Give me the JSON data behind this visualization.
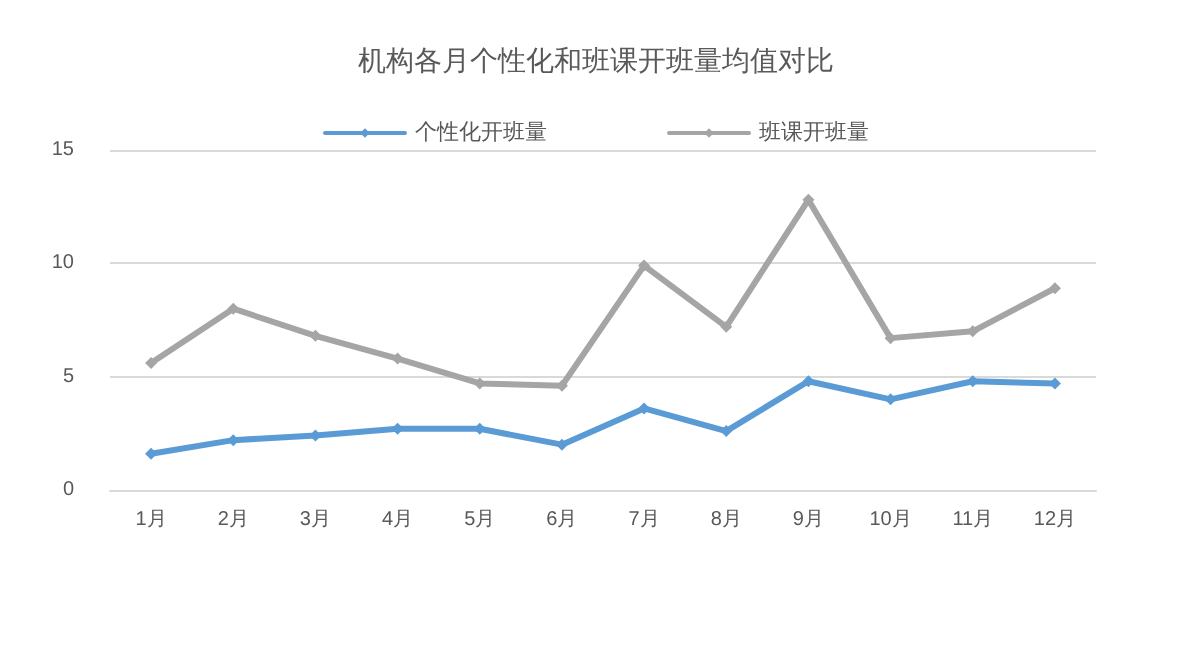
{
  "chart_data": {
    "type": "line",
    "title": "机构各月个性化和班课开班量均值对比",
    "categories": [
      "1月",
      "2月",
      "3月",
      "4月",
      "5月",
      "6月",
      "7月",
      "8月",
      "9月",
      "10月",
      "11月",
      "12月"
    ],
    "series": [
      {
        "name": "个性化开班量",
        "color": "#5b9bd5",
        "values": [
          1.6,
          2.2,
          2.4,
          2.7,
          2.7,
          2.0,
          3.6,
          2.6,
          4.8,
          4.0,
          4.8,
          4.7
        ]
      },
      {
        "name": "班课开班量",
        "color": "#a5a5a5",
        "values": [
          5.6,
          8.0,
          6.8,
          5.8,
          4.7,
          4.6,
          9.9,
          7.2,
          12.8,
          6.7,
          7.0,
          8.9
        ]
      }
    ],
    "ylim": [
      0,
      15
    ],
    "yticks": [
      0,
      5,
      10,
      15
    ],
    "grid": "y",
    "legend": "top",
    "marker": "diamond",
    "line_style": "solid"
  }
}
